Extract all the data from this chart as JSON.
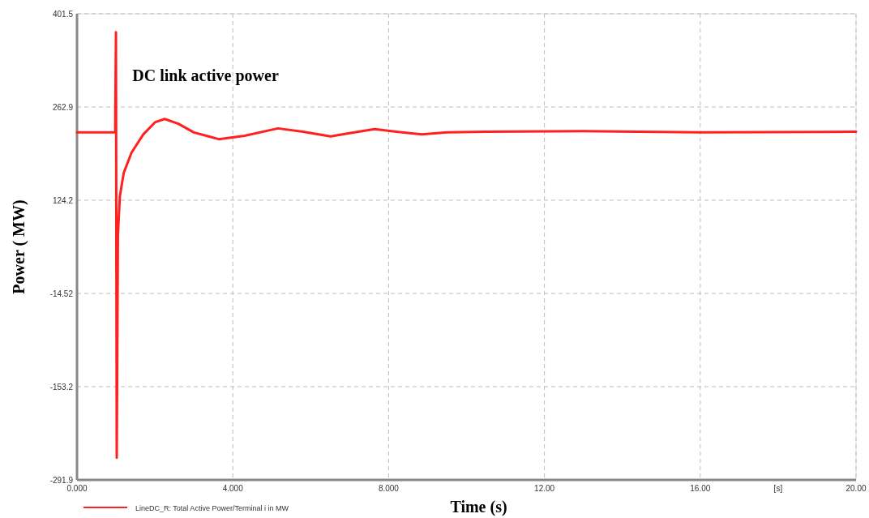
{
  "chart_data": {
    "type": "line",
    "title": "DC link active power",
    "xlabel": "Time (s)",
    "ylabel": "Power ( MW)",
    "annotations": [
      "[s]"
    ],
    "xlim": [
      0,
      20
    ],
    "xticks": [
      {
        "value": 0,
        "label": "0.000"
      },
      {
        "value": 4,
        "label": "4.000"
      },
      {
        "value": 8,
        "label": "8.000"
      },
      {
        "value": 12,
        "label": "12.00"
      },
      {
        "value": 16,
        "label": "16.00"
      },
      {
        "value": 20,
        "label": "20.00"
      }
    ],
    "ylim": [
      -291.9,
      401.5
    ],
    "yticks": [
      -291.9,
      -153.2,
      -14.52,
      124.2,
      262.9,
      401.5
    ],
    "grid": true,
    "legend": "bottom left",
    "line_style": "solid",
    "series": [
      {
        "name": "LineDC_R: Total Active Power/Terminal i in MW",
        "color": "#ff2020",
        "x": [
          0,
          0.98,
          1.0,
          1.02,
          1.05,
          1.1,
          1.2,
          1.4,
          1.7,
          2.0,
          2.25,
          2.6,
          3.0,
          3.64,
          4.3,
          5.16,
          5.8,
          6.51,
          7.0,
          7.64,
          8.2,
          8.85,
          9.5,
          10.5,
          13,
          16,
          20
        ],
        "values": [
          225,
          225,
          374,
          -259,
          72,
          130,
          165,
          195,
          222,
          240,
          245,
          238,
          225,
          215,
          220,
          231,
          226,
          219,
          224,
          230,
          226,
          222,
          225,
          226,
          227,
          225,
          226
        ]
      }
    ]
  }
}
